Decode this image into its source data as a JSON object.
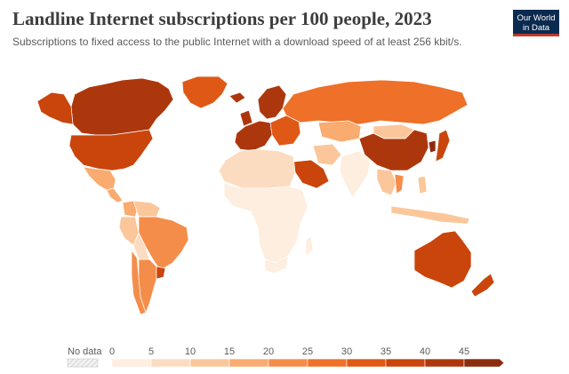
{
  "header": {
    "title": "Landline Internet subscriptions per 100 people, 2023",
    "subtitle": "Subscriptions to fixed access to the public Internet with a download speed of at least 256 kbit/s."
  },
  "logo": {
    "line1": "Our World",
    "line2": "in Data"
  },
  "legend": {
    "no_data_label": "No data",
    "ticks": [
      "0",
      "5",
      "10",
      "15",
      "20",
      "25",
      "30",
      "35",
      "40",
      "45"
    ],
    "colors": [
      "#fdeedf",
      "#fcdcc0",
      "#fbc79a",
      "#f9ab70",
      "#f58d4a",
      "#ee7029",
      "#df5816",
      "#c9450c",
      "#ad370d",
      "#8c2c0e"
    ]
  },
  "map": {
    "metric": "Landline Internet subscriptions per 100 people",
    "year": "2023",
    "regions": [
      {
        "name": "Canada",
        "value": 43
      },
      {
        "name": "United States",
        "value": 38
      },
      {
        "name": "Mexico",
        "value": 19
      },
      {
        "name": "Greenland",
        "value": 32
      },
      {
        "name": "Brazil",
        "value": 23
      },
      {
        "name": "Argentina",
        "value": 24
      },
      {
        "name": "Uruguay",
        "value": 36
      },
      {
        "name": "Chile",
        "value": 21
      },
      {
        "name": "Peru",
        "value": 10
      },
      {
        "name": "Colombia",
        "value": 17
      },
      {
        "name": "Venezuela",
        "value": 11
      },
      {
        "name": "Bolivia",
        "value": 9
      },
      {
        "name": "Northern Europe",
        "value": 42
      },
      {
        "name": "Western Europe",
        "value": 42
      },
      {
        "name": "Eastern Europe",
        "value": 30
      },
      {
        "name": "Russia",
        "value": 26
      },
      {
        "name": "Kazakhstan",
        "value": 17
      },
      {
        "name": "China",
        "value": 42
      },
      {
        "name": "Mongolia",
        "value": 13
      },
      {
        "name": "Japan",
        "value": 38
      },
      {
        "name": "South Korea",
        "value": 46
      },
      {
        "name": "India",
        "value": 3
      },
      {
        "name": "Saudi Arabia",
        "value": 38
      },
      {
        "name": "Iran",
        "value": 13
      },
      {
        "name": "North Africa",
        "value": 8
      },
      {
        "name": "Sub-Saharan Africa",
        "value": 1
      },
      {
        "name": "South Africa",
        "value": 4
      },
      {
        "name": "Southeast Asia",
        "value": 14
      },
      {
        "name": "Vietnam",
        "value": 23
      },
      {
        "name": "Australia",
        "value": 36
      },
      {
        "name": "New Zealand",
        "value": 39
      }
    ]
  }
}
